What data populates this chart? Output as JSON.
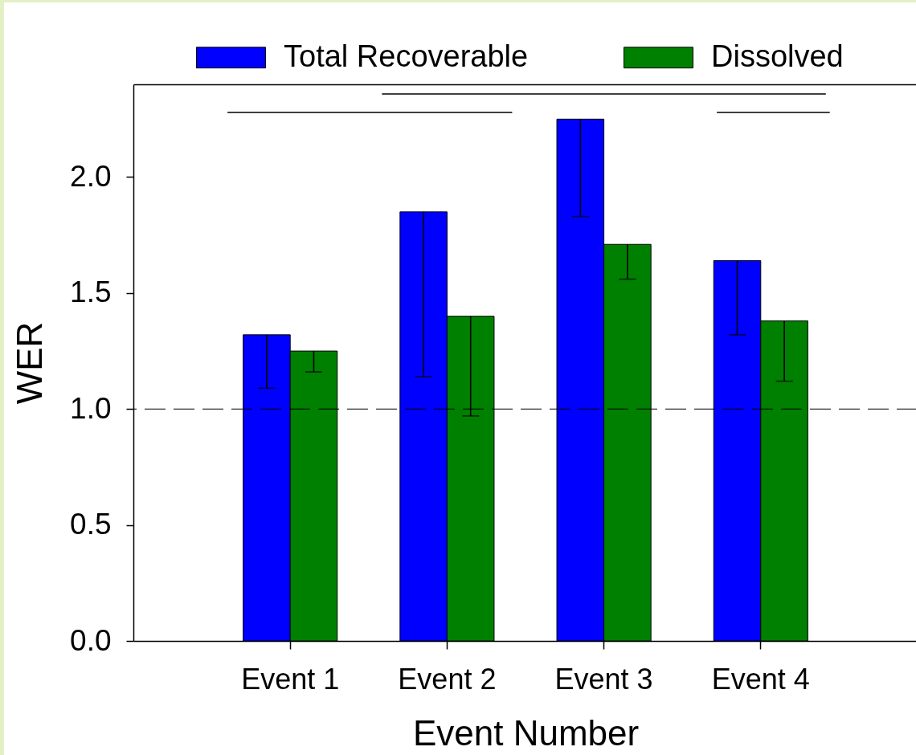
{
  "chart_data": {
    "type": "bar",
    "xlabel": "Event Number",
    "ylabel": "WER",
    "categories": [
      "Event 1",
      "Event 2",
      "Event 3",
      "Event 4"
    ],
    "series": [
      {
        "name": "Total Recoverable",
        "color": "#0000ff",
        "values": [
          1.32,
          1.85,
          2.25,
          1.64
        ],
        "errors": [
          [
            1.09,
            1.32
          ],
          [
            1.14,
            1.85
          ],
          [
            1.83,
            2.25
          ],
          [
            1.32,
            1.64
          ]
        ]
      },
      {
        "name": "Dissolved",
        "color": "#008000",
        "values": [
          1.25,
          1.4,
          1.71,
          1.38
        ],
        "errors": [
          [
            1.16,
            1.25
          ],
          [
            0.97,
            1.4
          ],
          [
            1.56,
            1.71
          ],
          [
            1.12,
            1.38
          ]
        ]
      }
    ],
    "ylim": [
      0,
      2.4
    ],
    "yticks": [
      {
        "value": 0,
        "label": "0.0"
      },
      0.5,
      {
        "value": 1,
        "label": "1.0"
      },
      1.5,
      {
        "value": 2,
        "label": "2.0"
      }
    ],
    "legend": "top",
    "ref_lines": [
      {
        "axis": "y",
        "value": 1,
        "line_style": "dashed"
      }
    ]
  }
}
